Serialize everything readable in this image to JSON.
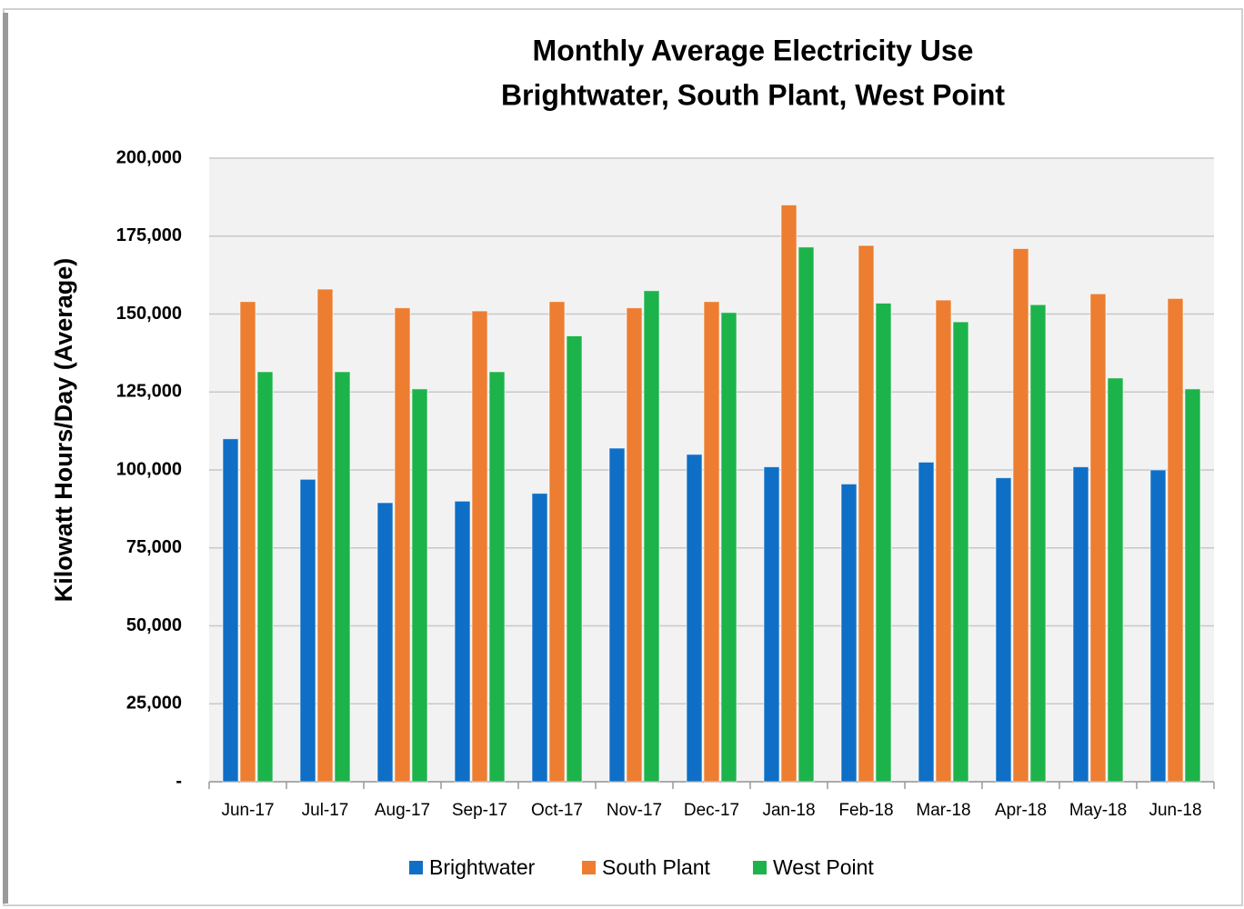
{
  "chart_data": {
    "type": "bar",
    "title": "Monthly Average Electricity Use",
    "subtitle": "Brightwater, South Plant, West Point",
    "ylabel": "Kilowatt Hours/Day (Average)",
    "categories": [
      "Jun-17",
      "Jul-17",
      "Aug-17",
      "Sep-17",
      "Oct-17",
      "Nov-17",
      "Dec-17",
      "Jan-18",
      "Feb-18",
      "Mar-18",
      "Apr-18",
      "May-18",
      "Jun-18"
    ],
    "series": [
      {
        "name": "Brightwater",
        "color": "#0f6fc6",
        "values": [
          110000,
          97000,
          89500,
          90000,
          92500,
          107000,
          105000,
          101000,
          95500,
          102500,
          97500,
          101000,
          100000
        ]
      },
      {
        "name": "South Plant",
        "color": "#ed7d31",
        "values": [
          154000,
          158000,
          152000,
          151000,
          154000,
          152000,
          154000,
          185000,
          172000,
          154500,
          171000,
          156500,
          155000
        ]
      },
      {
        "name": "West Point",
        "color": "#1db34b",
        "values": [
          131500,
          131500,
          126000,
          131500,
          143000,
          157500,
          150500,
          171500,
          153500,
          147500,
          153000,
          129500,
          126000
        ]
      }
    ],
    "ylim": [
      0,
      200000
    ],
    "yticks": [
      {
        "value": 0,
        "label": "-"
      },
      {
        "value": 25000,
        "label": "25,000"
      },
      {
        "value": 50000,
        "label": "50,000"
      },
      {
        "value": 75000,
        "label": "75,000"
      },
      {
        "value": 100000,
        "label": "100,000"
      },
      {
        "value": 125000,
        "label": "125,000"
      },
      {
        "value": 150000,
        "label": "150,000"
      },
      {
        "value": 175000,
        "label": "175,000"
      },
      {
        "value": 200000,
        "label": "200,000"
      }
    ],
    "grid": true,
    "legend": "bottom"
  }
}
